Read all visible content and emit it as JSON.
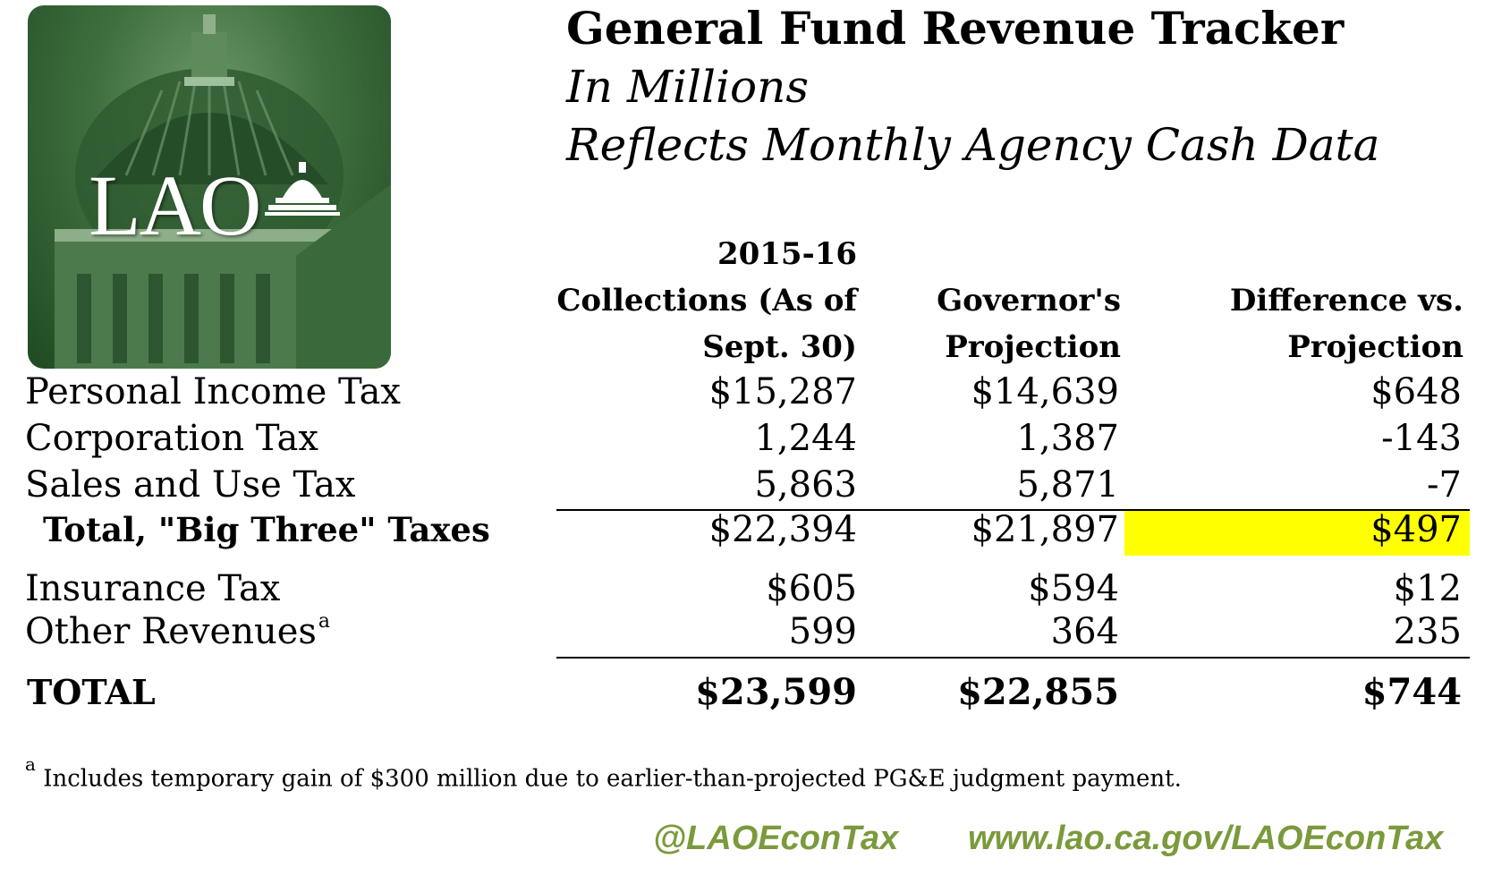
{
  "logo": {
    "text": "LAO"
  },
  "header": {
    "title": "General Fund Revenue Tracker",
    "subtitle_1": "In Millions",
    "subtitle_2": "Reflects Monthly Agency Cash Data"
  },
  "table": {
    "columns": [
      {
        "line1": "2015-16",
        "line2": "Collections (As of",
        "line3": "Sept. 30)"
      },
      {
        "line1": "",
        "line2": "Governor's",
        "line3": "Projection"
      },
      {
        "line1": "",
        "line2": "Difference vs.",
        "line3": "Projection"
      }
    ],
    "rows": [
      {
        "label": "Personal Income Tax",
        "values": [
          "$15,287",
          "$14,639",
          "$648"
        ]
      },
      {
        "label": "Corporation Tax",
        "values": [
          "1,244",
          "1,387",
          "-143"
        ]
      },
      {
        "label": "Sales and Use Tax",
        "values": [
          "5,863",
          "5,871",
          "-7"
        ]
      },
      {
        "label": "Total, \"Big Three\" Taxes",
        "values": [
          "$22,394",
          "$21,897",
          "$497"
        ]
      },
      {
        "label": "Insurance Tax",
        "values": [
          "$605",
          "$594",
          "$12"
        ]
      },
      {
        "label": "Other Revenues",
        "footnote_marker": "a",
        "values": [
          "599",
          "364",
          "235"
        ]
      },
      {
        "label": "TOTAL",
        "values": [
          "$23,599",
          "$22,855",
          "$744"
        ]
      }
    ]
  },
  "footnote": {
    "marker": "a",
    "text": "Includes temporary gain of $300 million due to earlier-than-projected PG&E judgment payment."
  },
  "footer": {
    "twitter": "@LAOEconTax",
    "website": "www.lao.ca.gov/LAOEconTax"
  },
  "colors": {
    "highlight": "#ffff00",
    "footer_green": "#7b9a3c",
    "logo_green": "#3f6f3f"
  }
}
